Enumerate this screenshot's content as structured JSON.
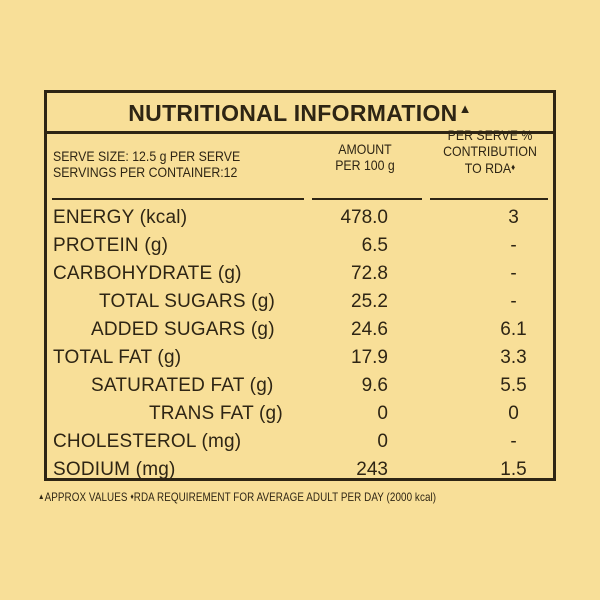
{
  "title": "NUTRITIONAL INFORMATION",
  "title_mark": "▲",
  "serve_size": "SERVE SIZE: 12.5 g PER SERVE",
  "servings_per_container": "SERVINGS PER CONTAINER:12",
  "col_amount": [
    "AMOUNT",
    "PER 100 g"
  ],
  "col_rda": [
    "PER SERVE %",
    "CONTRIBUTION",
    "TO RDA"
  ],
  "col_rda_mark": "♦",
  "rows": [
    {
      "name": "ENERGY (kcal)",
      "amount": "478.0",
      "rda": "3"
    },
    {
      "name": "PROTEIN (g)",
      "amount": "6.5",
      "rda": "-"
    },
    {
      "name": "CARBOHYDRATE (g)",
      "amount": "72.8",
      "rda": "-"
    },
    {
      "name": "TOTAL SUGARS (g)",
      "amount": "25.2",
      "rda": "-"
    },
    {
      "name": "ADDED SUGARS (g)",
      "amount": "24.6",
      "rda": "6.1"
    },
    {
      "name": "TOTAL FAT (g)",
      "amount": "17.9",
      "rda": "3.3"
    },
    {
      "name": "SATURATED FAT (g)",
      "amount": "9.6",
      "rda": "5.5"
    },
    {
      "name": "TRANS FAT (g)",
      "amount": "0",
      "rda": "0"
    },
    {
      "name": "CHOLESTEROL (mg)",
      "amount": "0",
      "rda": "-"
    },
    {
      "name": "SODIUM (mg)",
      "amount": "243",
      "rda": "1.5"
    }
  ],
  "footnote_mark1": "▲",
  "footnote_part1": "APPROX VALUES ",
  "footnote_mark2": "♦",
  "footnote_part2": "RDA REQUIREMENT FOR AVERAGE ADULT PER DAY (2000 kcal)",
  "colors": {
    "background": "#f8df98",
    "ink": "#2e2514"
  }
}
